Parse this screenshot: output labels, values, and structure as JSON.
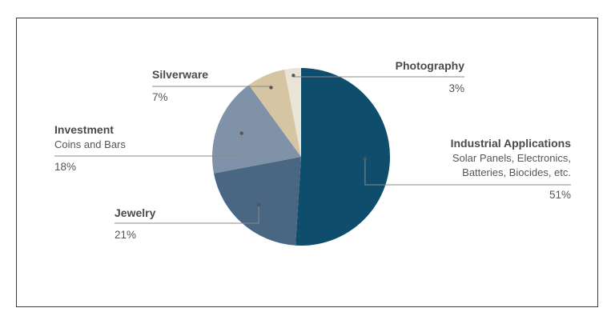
{
  "chart_data": {
    "type": "pie",
    "title": "",
    "colors": {
      "Industrial Applications": "#0e4d6b",
      "Jewelry": "#496782",
      "Investment": "#7f92a8",
      "Silverware": "#d5c5a3",
      "Photography": "#e9e4d6",
      "leader": "#8a8a8a",
      "dot": "#555555"
    },
    "slices": [
      {
        "name": "Industrial Applications",
        "sub": [
          "Solar Panels, Electronics,",
          "Batteries, Biocides, etc."
        ],
        "value": 51,
        "label": "51%"
      },
      {
        "name": "Jewelry",
        "sub": [],
        "value": 21,
        "label": "21%"
      },
      {
        "name": "Investment",
        "sub": [
          "Coins and Bars"
        ],
        "value": 18,
        "label": "18%"
      },
      {
        "name": "Silverware",
        "sub": [],
        "value": 7,
        "label": "7%"
      },
      {
        "name": "Photography",
        "sub": [],
        "value": 3,
        "label": "3%"
      }
    ]
  }
}
